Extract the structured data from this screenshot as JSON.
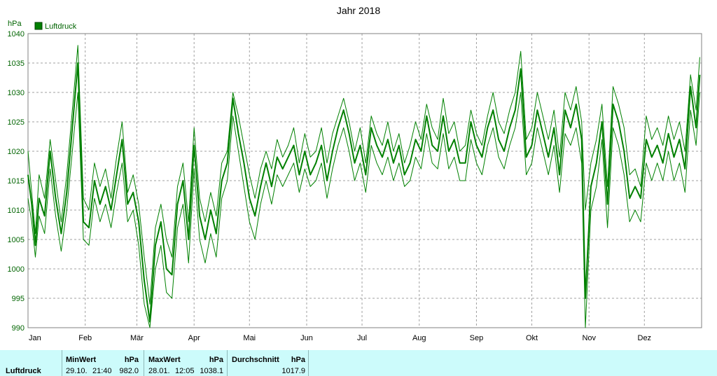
{
  "title": "Jahr 2018",
  "chart_data": {
    "type": "line",
    "title": "Jahr 2018",
    "ylabel": "hPa",
    "xlabel": "",
    "ylim": [
      990,
      1040
    ],
    "xlim_days": [
      0,
      365
    ],
    "grid": true,
    "legend": "top-left",
    "y_ticks": [
      "990",
      "995",
      "1000",
      "1005",
      "1010",
      "1015",
      "1020",
      "1025",
      "1030",
      "1035",
      "1040"
    ],
    "x_ticks": [
      "Jan",
      "Feb",
      "Mär",
      "Apr",
      "Mai",
      "Jun",
      "Jul",
      "Aug",
      "Sep",
      "Okt",
      "Nov",
      "Dez"
    ],
    "series": [
      {
        "name": "Luftdruck",
        "color": "#008000",
        "x": [
          "2018-01-01",
          "2018-01-03",
          "2018-01-05",
          "2018-01-07",
          "2018-01-10",
          "2018-01-13",
          "2018-01-16",
          "2018-01-19",
          "2018-01-22",
          "2018-01-25",
          "2018-01-28",
          "2018-01-31",
          "2018-02-03",
          "2018-02-06",
          "2018-02-09",
          "2018-02-12",
          "2018-02-15",
          "2018-02-18",
          "2018-02-21",
          "2018-02-24",
          "2018-02-27",
          "2018-03-02",
          "2018-03-05",
          "2018-03-08",
          "2018-03-11",
          "2018-03-14",
          "2018-03-17",
          "2018-03-20",
          "2018-03-23",
          "2018-03-26",
          "2018-03-29",
          "2018-04-01",
          "2018-04-04",
          "2018-04-07",
          "2018-04-10",
          "2018-04-13",
          "2018-04-16",
          "2018-04-19",
          "2018-04-22",
          "2018-04-25",
          "2018-04-28",
          "2018-05-01",
          "2018-05-04",
          "2018-05-07",
          "2018-05-10",
          "2018-05-13",
          "2018-05-16",
          "2018-05-19",
          "2018-05-22",
          "2018-05-25",
          "2018-05-28",
          "2018-05-31",
          "2018-06-03",
          "2018-06-06",
          "2018-06-09",
          "2018-06-12",
          "2018-06-15",
          "2018-06-18",
          "2018-06-21",
          "2018-06-24",
          "2018-06-27",
          "2018-06-30",
          "2018-07-03",
          "2018-07-06",
          "2018-07-09",
          "2018-07-12",
          "2018-07-15",
          "2018-07-18",
          "2018-07-21",
          "2018-07-24",
          "2018-07-27",
          "2018-07-30",
          "2018-08-02",
          "2018-08-05",
          "2018-08-08",
          "2018-08-11",
          "2018-08-14",
          "2018-08-17",
          "2018-08-20",
          "2018-08-23",
          "2018-08-26",
          "2018-08-29",
          "2018-09-01",
          "2018-09-04",
          "2018-09-07",
          "2018-09-10",
          "2018-09-13",
          "2018-09-16",
          "2018-09-19",
          "2018-09-22",
          "2018-09-25",
          "2018-09-28",
          "2018-10-01",
          "2018-10-04",
          "2018-10-07",
          "2018-10-10",
          "2018-10-13",
          "2018-10-16",
          "2018-10-19",
          "2018-10-22",
          "2018-10-25",
          "2018-10-28",
          "2018-10-30",
          "2018-11-02",
          "2018-11-05",
          "2018-11-08",
          "2018-11-11",
          "2018-11-14",
          "2018-11-17",
          "2018-11-20",
          "2018-11-23",
          "2018-11-26",
          "2018-11-29",
          "2018-12-02",
          "2018-12-05",
          "2018-12-08",
          "2018-12-11",
          "2018-12-14",
          "2018-12-17",
          "2018-12-20",
          "2018-12-23",
          "2018-12-26",
          "2018-12-29",
          "2018-12-31"
        ],
        "max": [
          1020,
          1013,
          1006,
          1016,
          1012,
          1022,
          1015,
          1008,
          1016,
          1027,
          1038,
          1012,
          1010,
          1018,
          1014,
          1017,
          1012,
          1019,
          1025,
          1013,
          1016,
          1011,
          1002,
          994,
          1007,
          1011,
          1005,
          1002,
          1014,
          1018,
          1008,
          1024,
          1012,
          1008,
          1013,
          1009,
          1018,
          1020,
          1030,
          1026,
          1021,
          1016,
          1012,
          1017,
          1020,
          1017,
          1022,
          1019,
          1021,
          1024,
          1018,
          1023,
          1019,
          1020,
          1024,
          1018,
          1023,
          1026,
          1029,
          1025,
          1020,
          1024,
          1018,
          1026,
          1023,
          1021,
          1025,
          1020,
          1023,
          1018,
          1021,
          1025,
          1022,
          1028,
          1024,
          1022,
          1029,
          1023,
          1025,
          1020,
          1021,
          1027,
          1023,
          1021,
          1026,
          1030,
          1025,
          1023,
          1027,
          1030,
          1037,
          1022,
          1024,
          1030,
          1026,
          1022,
          1027,
          1019,
          1030,
          1027,
          1031,
          1025,
          1010,
          1018,
          1022,
          1028,
          1014,
          1031,
          1028,
          1024,
          1016,
          1017,
          1014,
          1026,
          1022,
          1024,
          1021,
          1026,
          1022,
          1025,
          1020,
          1033,
          1027,
          1036
        ],
        "mean": [
          1016,
          1011,
          1004,
          1012,
          1009,
          1020,
          1012,
          1006,
          1013,
          1024,
          1035,
          1008,
          1007,
          1015,
          1011,
          1014,
          1010,
          1016,
          1022,
          1011,
          1013,
          1008,
          998,
          991,
          1004,
          1008,
          1000,
          999,
          1011,
          1015,
          1005,
          1021,
          1009,
          1005,
          1010,
          1006,
          1015,
          1018,
          1029,
          1023,
          1018,
          1012,
          1009,
          1014,
          1018,
          1014,
          1019,
          1017,
          1019,
          1021,
          1016,
          1020,
          1016,
          1018,
          1021,
          1015,
          1020,
          1024,
          1027,
          1023,
          1018,
          1021,
          1016,
          1024,
          1021,
          1019,
          1022,
          1018,
          1021,
          1016,
          1018,
          1022,
          1020,
          1026,
          1021,
          1020,
          1026,
          1020,
          1022,
          1018,
          1018,
          1025,
          1021,
          1019,
          1024,
          1027,
          1022,
          1020,
          1024,
          1027,
          1034,
          1019,
          1021,
          1027,
          1023,
          1019,
          1024,
          1016,
          1027,
          1024,
          1028,
          1022,
          995,
          1014,
          1018,
          1025,
          1011,
          1028,
          1025,
          1020,
          1012,
          1014,
          1012,
          1022,
          1019,
          1021,
          1018,
          1023,
          1019,
          1022,
          1017,
          1031,
          1024,
          1033
        ],
        "min": [
          1012,
          1008,
          1002,
          1009,
          1006,
          1017,
          1009,
          1003,
          1010,
          1020,
          1030,
          1005,
          1004,
          1012,
          1008,
          1011,
          1007,
          1013,
          1018,
          1008,
          1010,
          1004,
          994,
          990,
          1000,
          1004,
          996,
          995,
          1007,
          1011,
          1001,
          1017,
          1005,
          1001,
          1006,
          1002,
          1012,
          1015,
          1026,
          1020,
          1014,
          1008,
          1005,
          1011,
          1015,
          1011,
          1016,
          1014,
          1016,
          1018,
          1013,
          1017,
          1014,
          1015,
          1018,
          1012,
          1017,
          1021,
          1024,
          1020,
          1015,
          1018,
          1013,
          1021,
          1018,
          1016,
          1019,
          1015,
          1018,
          1014,
          1015,
          1019,
          1017,
          1023,
          1018,
          1017,
          1023,
          1017,
          1019,
          1015,
          1015,
          1022,
          1018,
          1016,
          1021,
          1024,
          1019,
          1017,
          1021,
          1024,
          1030,
          1016,
          1018,
          1024,
          1020,
          1016,
          1021,
          1013,
          1023,
          1021,
          1024,
          1018,
          990,
          1010,
          1014,
          1022,
          1007,
          1024,
          1021,
          1016,
          1008,
          1010,
          1008,
          1018,
          1015,
          1018,
          1015,
          1020,
          1015,
          1018,
          1013,
          1027,
          1021,
          1030
        ]
      }
    ]
  },
  "stats": {
    "row_label": "Luftdruck",
    "min_label": "MinWert",
    "min_unit": "hPa",
    "min_date": "29.10.",
    "min_time": "21:40",
    "min_value": "982.0",
    "max_label": "MaxWert",
    "max_unit": "hPa",
    "max_date": "28.01.",
    "max_time": "12:05",
    "max_value": "1038.1",
    "avg_label": "Durchschnitt",
    "avg_unit": "hPa",
    "avg_value": "1017.9"
  }
}
